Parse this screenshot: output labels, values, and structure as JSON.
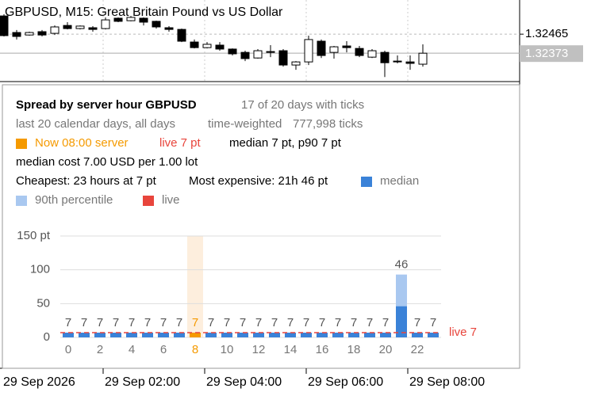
{
  "chart_data": [
    {
      "type": "candlestick",
      "title": "GBPUSD, M15:  Great Britain Pound vs US Dollar",
      "categories": [
        "29 Sep 2026",
        null,
        null,
        null,
        null,
        null,
        null,
        null,
        "29 Sep 02:00",
        null,
        null,
        null,
        null,
        null,
        null,
        null,
        "29 Sep 04:00",
        null,
        null,
        null,
        null,
        null,
        null,
        null,
        "29 Sep 06:00",
        null,
        null,
        null,
        null,
        null,
        null,
        null,
        "29 Sep 08:00",
        null
      ],
      "open": [
        1.32553,
        1.32473,
        1.32461,
        1.32477,
        1.32469,
        1.32507,
        1.32492,
        1.32496,
        1.32492,
        1.32542,
        1.3253,
        1.32542,
        1.32527,
        1.32496,
        1.32488,
        1.32427,
        1.324,
        1.32412,
        1.32393,
        1.32377,
        1.3235,
        1.32381,
        1.32385,
        1.32316,
        1.32331,
        1.32431,
        1.32377,
        1.32408,
        1.32396,
        1.32354,
        1.32377,
        1.32335,
        1.32331,
        1.3232
      ],
      "high": [
        1.32561,
        1.32485,
        1.32477,
        1.32485,
        1.32507,
        1.32523,
        1.32507,
        1.32504,
        1.32546,
        1.32546,
        1.32553,
        1.32546,
        1.3253,
        1.32504,
        1.32492,
        1.32439,
        1.32427,
        1.32427,
        1.32396,
        1.32385,
        1.32393,
        1.32412,
        1.32393,
        1.32335,
        1.32458,
        1.32439,
        1.32408,
        1.32431,
        1.32408,
        1.32393,
        1.32385,
        1.32362,
        1.32362,
        1.32416
      ],
      "low": [
        1.32454,
        1.32439,
        1.32458,
        1.32454,
        1.32461,
        1.32488,
        1.32488,
        1.32477,
        1.32488,
        1.32523,
        1.32527,
        1.32507,
        1.32492,
        1.32477,
        1.32427,
        1.32396,
        1.32396,
        1.32385,
        1.32362,
        1.32335,
        1.32347,
        1.32354,
        1.32308,
        1.32293,
        1.32316,
        1.3235,
        1.32347,
        1.32377,
        1.32354,
        1.3235,
        1.32258,
        1.32324,
        1.32293,
        1.32308
      ],
      "close": [
        1.32458,
        1.32454,
        1.32473,
        1.32461,
        1.325,
        1.32492,
        1.32504,
        1.32488,
        1.32534,
        1.32527,
        1.32546,
        1.32523,
        1.325,
        1.32488,
        1.32431,
        1.324,
        1.32416,
        1.32393,
        1.3237,
        1.32347,
        1.32385,
        1.32377,
        1.32316,
        1.32331,
        1.32439,
        1.32362,
        1.32404,
        1.324,
        1.32362,
        1.32385,
        1.32327,
        1.32331,
        1.32324,
        1.32373
      ],
      "ylim": [
        1.32236,
        1.3263
      ],
      "yticks": [
        1.32465
      ],
      "last_price": 1.32373,
      "up_color": "#ffffff",
      "down_color": "#000000",
      "grid": true
    },
    {
      "type": "bar",
      "categories": [
        "0",
        null,
        "2",
        null,
        "4",
        null,
        "6",
        null,
        "8",
        null,
        "10",
        null,
        "12",
        null,
        "14",
        null,
        "16",
        null,
        "18",
        null,
        "20",
        null,
        "22",
        null
      ],
      "series": [
        {
          "name": "median",
          "color": "#3a82d8",
          "values": [
            7,
            7,
            7,
            7,
            7,
            7,
            7,
            7,
            7,
            7,
            7,
            7,
            7,
            7,
            7,
            7,
            7,
            7,
            7,
            7,
            7,
            46,
            7,
            7
          ]
        },
        {
          "name": "90th percentile",
          "color": "#a9c8f0",
          "values": [
            7,
            7,
            7,
            7,
            7,
            7,
            7,
            7,
            7,
            7,
            7,
            7,
            7,
            7,
            7,
            7,
            7,
            7,
            7,
            7,
            7,
            93,
            7,
            7
          ]
        }
      ],
      "live": {
        "name": "live",
        "color": "#e8453c",
        "value": 7,
        "label": "live 7"
      },
      "highlight_index": 8,
      "highlight_color": "#f59a00",
      "highlight_band_color": "#fdeedd",
      "ylim": [
        0,
        150
      ],
      "yticks": [
        0,
        50,
        100,
        {
          "value": 150,
          "label": "150 pt"
        }
      ],
      "grid": true
    }
  ],
  "panel": {
    "title": "Spread by server hour  GBPUSD",
    "days": "17 of 20 days with ticks",
    "range": "last 20 calendar days, all days",
    "weighting": "time-weighted",
    "ticks": "777,998 ticks",
    "now": "Now 08:00 server",
    "live": "live 7 pt",
    "now_stats": "median 7 pt, p90 7 pt",
    "cost": "median cost 7.00 USD per 1.00 lot",
    "cheapest": "Cheapest: 23 hours at 7 pt",
    "expensive": "Most expensive: 21h 46 pt"
  }
}
